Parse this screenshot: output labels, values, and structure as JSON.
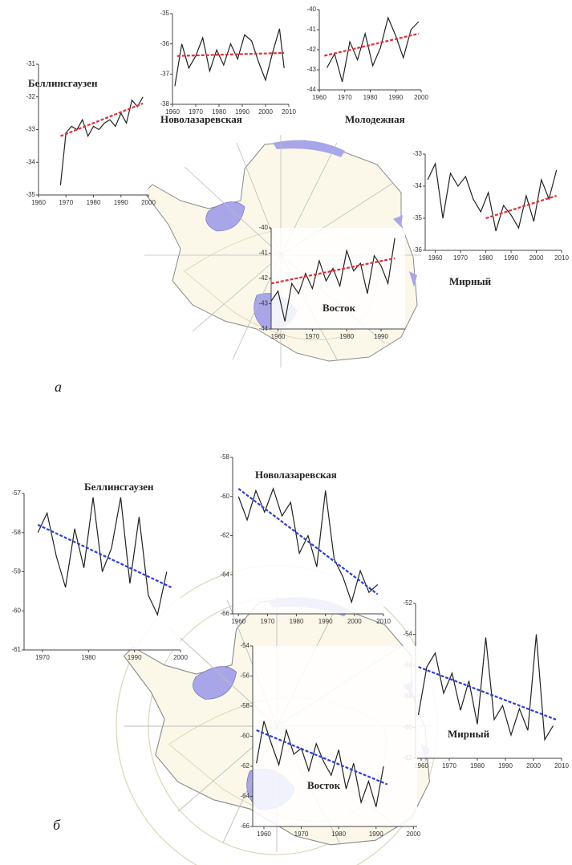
{
  "panel_labels": [
    "а",
    "б"
  ],
  "chart_data": [
    {
      "type": "line",
      "title": "Беллинсгаузен",
      "xlim": [
        1960,
        2000
      ],
      "ylim": [
        -35,
        -31
      ],
      "xticks": [
        1960,
        1970,
        1980,
        1990,
        2000
      ],
      "yticks": [
        -31,
        -32,
        -33,
        -34,
        -35
      ],
      "x": [
        1968,
        1970,
        1972,
        1974,
        1976,
        1978,
        1980,
        1982,
        1984,
        1986,
        1988,
        1990,
        1992,
        1994,
        1996,
        1998
      ],
      "values": [
        -34.7,
        -33.1,
        -32.9,
        -33.0,
        -32.7,
        -33.2,
        -32.9,
        -33.0,
        -32.8,
        -32.7,
        -32.9,
        -32.5,
        -32.8,
        -32.1,
        -32.3,
        -32.0
      ],
      "color": "#222",
      "trend": {
        "x": [
          1968,
          1998
        ],
        "values": [
          -33.2,
          -32.2
        ],
        "color": "#e0303a"
      }
    },
    {
      "type": "line",
      "title": "Новолазаревская",
      "xlim": [
        1960,
        2010
      ],
      "ylim": [
        -38,
        -35
      ],
      "xticks": [
        1960,
        1970,
        1980,
        1990,
        2000,
        2010
      ],
      "yticks": [
        -35,
        -36,
        -37,
        -38
      ],
      "x": [
        1961,
        1964,
        1967,
        1970,
        1973,
        1976,
        1979,
        1982,
        1985,
        1988,
        1991,
        1994,
        1997,
        2000,
        2003,
        2006,
        2008
      ],
      "values": [
        -37.4,
        -36.0,
        -36.8,
        -36.4,
        -35.8,
        -36.9,
        -36.2,
        -36.7,
        -36.0,
        -36.5,
        -35.7,
        -35.9,
        -36.6,
        -37.2,
        -36.3,
        -35.5,
        -36.8
      ],
      "color": "#222",
      "trend": {
        "x": [
          1962,
          2008
        ],
        "values": [
          -36.4,
          -36.3
        ],
        "color": "#e0303a"
      }
    },
    {
      "type": "line",
      "title": "Молодежная",
      "xlim": [
        1960,
        2000
      ],
      "ylim": [
        -44,
        -40
      ],
      "xticks": [
        1960,
        1970,
        1980,
        1990,
        2000
      ],
      "yticks": [
        -40,
        -41,
        -42,
        -43,
        -44
      ],
      "x": [
        1963,
        1966,
        1969,
        1972,
        1975,
        1978,
        1981,
        1984,
        1987,
        1990,
        1993,
        1996,
        1999
      ],
      "values": [
        -42.9,
        -42.2,
        -43.6,
        -41.6,
        -42.5,
        -41.2,
        -42.8,
        -41.9,
        -40.4,
        -41.3,
        -42.4,
        -41.0,
        -40.6
      ],
      "color": "#222",
      "trend": {
        "x": [
          1962,
          1999
        ],
        "values": [
          -42.3,
          -41.2
        ],
        "color": "#e0303a"
      }
    },
    {
      "type": "line",
      "title": "Мирный",
      "xlim": [
        1956,
        2010
      ],
      "ylim": [
        -36,
        -33
      ],
      "xticks": [
        1960,
        1970,
        1980,
        1990,
        2000,
        2010
      ],
      "yticks": [
        -33,
        -34,
        -35,
        -36
      ],
      "x": [
        1957,
        1960,
        1963,
        1966,
        1969,
        1972,
        1975,
        1978,
        1981,
        1984,
        1987,
        1990,
        1993,
        1996,
        1999,
        2002,
        2005,
        2008
      ],
      "values": [
        -33.8,
        -33.3,
        -35.0,
        -33.6,
        -34.0,
        -33.7,
        -34.4,
        -34.8,
        -34.2,
        -35.4,
        -34.6,
        -34.9,
        -35.3,
        -34.3,
        -35.1,
        -33.8,
        -34.4,
        -33.5
      ],
      "color": "#222",
      "trend": {
        "x": [
          1980,
          2008
        ],
        "values": [
          -35.0,
          -34.3
        ],
        "color": "#e0303a"
      }
    },
    {
      "type": "line",
      "title": "Восток",
      "xlim": [
        1958,
        1997
      ],
      "ylim": [
        -44,
        -40
      ],
      "xticks": [
        1960,
        1970,
        1980,
        1990
      ],
      "yticks": [
        -40,
        -41,
        -42,
        -43,
        -44
      ],
      "x": [
        1958,
        1960,
        1962,
        1964,
        1966,
        1968,
        1970,
        1972,
        1974,
        1976,
        1978,
        1980,
        1982,
        1984,
        1986,
        1988,
        1990,
        1992,
        1994
      ],
      "values": [
        -42.9,
        -42.5,
        -43.7,
        -42.2,
        -42.6,
        -41.8,
        -42.4,
        -41.3,
        -42.1,
        -41.6,
        -42.3,
        -40.9,
        -41.7,
        -41.4,
        -42.6,
        -41.1,
        -41.5,
        -42.2,
        -40.4
      ],
      "color": "#222",
      "trend": {
        "x": [
          1958,
          1994
        ],
        "values": [
          -42.2,
          -41.2
        ],
        "color": "#e0303a"
      }
    },
    {
      "type": "line",
      "title": "Беллинсгаузен",
      "xlim": [
        1966,
        2000
      ],
      "ylim": [
        -61,
        -57
      ],
      "xticks": [
        1970,
        1980,
        1990,
        2000
      ],
      "yticks": [
        -57,
        -58,
        -59,
        -60,
        -61
      ],
      "x": [
        1969,
        1971,
        1973,
        1975,
        1977,
        1979,
        1981,
        1983,
        1985,
        1987,
        1989,
        1991,
        1993,
        1995,
        1997
      ],
      "values": [
        -58.0,
        -57.5,
        -58.6,
        -59.4,
        -57.9,
        -58.9,
        -57.1,
        -59.0,
        -58.4,
        -57.1,
        -59.3,
        -57.6,
        -59.6,
        -60.1,
        -59.0
      ],
      "color": "#222",
      "trend": {
        "x": [
          1969,
          1998
        ],
        "values": [
          -57.8,
          -59.4
        ],
        "color": "#2b3fd0"
      }
    },
    {
      "type": "line",
      "title": "Новолазаревская",
      "xlim": [
        1958,
        2010
      ],
      "ylim": [
        -66,
        -58
      ],
      "xticks": [
        1960,
        1970,
        1980,
        1990,
        2000,
        2010
      ],
      "yticks": [
        -58,
        -60,
        -62,
        -64,
        -66
      ],
      "x": [
        1960,
        1963,
        1966,
        1969,
        1972,
        1975,
        1978,
        1981,
        1984,
        1987,
        1990,
        1993,
        1996,
        1999,
        2002,
        2005,
        2008
      ],
      "values": [
        -60.0,
        -61.2,
        -59.7,
        -60.8,
        -59.6,
        -61.0,
        -60.3,
        -62.9,
        -62.0,
        -63.6,
        -59.7,
        -63.2,
        -64.1,
        -65.4,
        -63.8,
        -64.9,
        -64.5
      ],
      "color": "#222",
      "trend": {
        "x": [
          1960,
          2008
        ],
        "values": [
          -59.6,
          -65.0
        ],
        "color": "#2b3fd0"
      }
    },
    {
      "type": "line",
      "title": "Мирный",
      "xlim": [
        1958,
        2010
      ],
      "ylim": [
        -62,
        -52
      ],
      "xticks": [
        1960,
        1970,
        1980,
        1990,
        2000,
        2010
      ],
      "yticks": [
        -52,
        -54,
        -56,
        -58,
        -60,
        -62
      ],
      "x": [
        1959,
        1962,
        1965,
        1968,
        1971,
        1974,
        1977,
        1980,
        1983,
        1986,
        1989,
        1992,
        1995,
        1998,
        2001,
        2004,
        2007
      ],
      "values": [
        -59.2,
        -56.1,
        -55.2,
        -57.8,
        -56.5,
        -58.9,
        -57.0,
        -59.8,
        -54.2,
        -59.5,
        -58.6,
        -60.5,
        -58.8,
        -60.2,
        -54.0,
        -60.8,
        -59.9
      ],
      "color": "#222",
      "trend": {
        "x": [
          1959,
          2008
        ],
        "values": [
          -56.1,
          -59.5
        ],
        "color": "#2b3fd0"
      }
    },
    {
      "type": "line",
      "title": "Восток",
      "xlim": [
        1957,
        2001
      ],
      "ylim": [
        -66,
        -54
      ],
      "xticks": [
        1960,
        1970,
        1980,
        1990,
        2000
      ],
      "yticks": [
        -54,
        -56,
        -58,
        -60,
        -62,
        -64,
        -66
      ],
      "x": [
        1958,
        1960,
        1962,
        1964,
        1966,
        1968,
        1970,
        1972,
        1974,
        1976,
        1978,
        1980,
        1982,
        1984,
        1986,
        1988,
        1990,
        1992
      ],
      "values": [
        -61.8,
        -59.0,
        -60.5,
        -61.9,
        -59.6,
        -61.2,
        -60.8,
        -62.3,
        -60.5,
        -61.7,
        -62.6,
        -60.9,
        -63.5,
        -61.8,
        -64.4,
        -63.0,
        -64.7,
        -62.0
      ],
      "color": "#222",
      "trend": {
        "x": [
          1958,
          1993
        ],
        "values": [
          -59.6,
          -63.2
        ],
        "color": "#2b3fd0"
      }
    }
  ]
}
